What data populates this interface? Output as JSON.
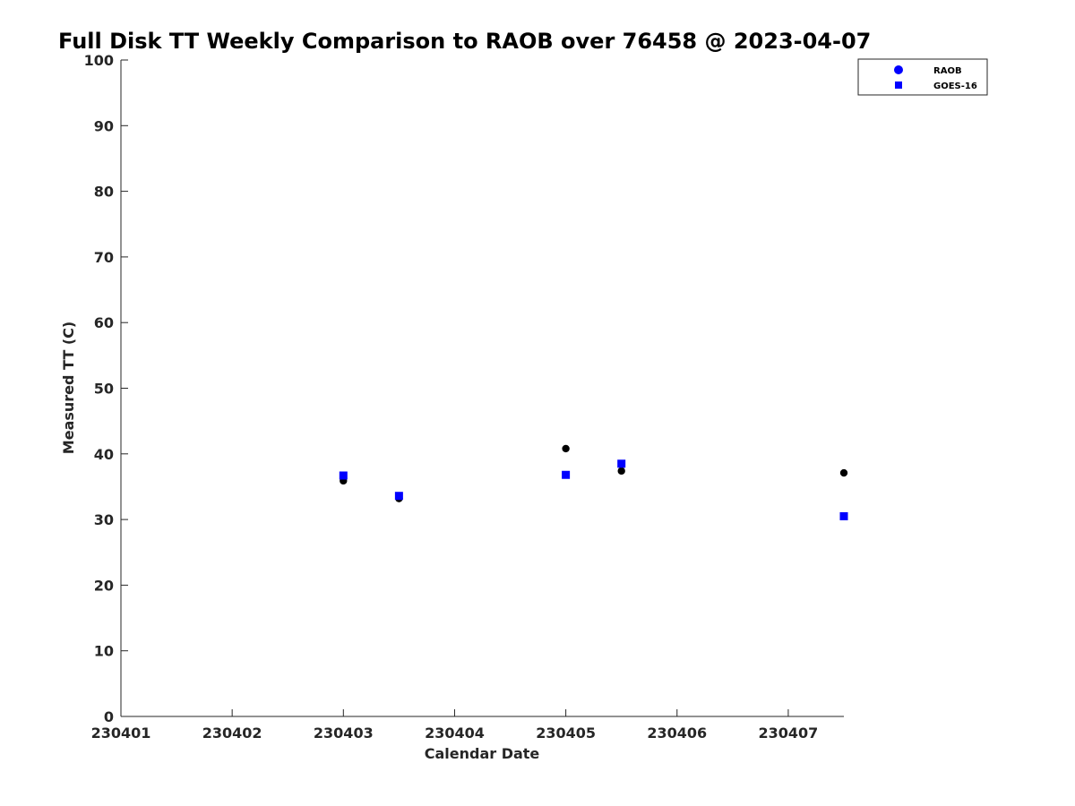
{
  "chart_data": {
    "type": "scatter",
    "title": "Full Disk TT Weekly Comparison to RAOB over 76458 @ 2023-04-07",
    "xlabel": "Calendar Date",
    "ylabel": "Measured TT (C)",
    "xlim": [
      "2023-04-01",
      "2023-04-07 12:00"
    ],
    "ylim": [
      0,
      100
    ],
    "x_ticks": [
      "230401",
      "230402",
      "230403",
      "230404",
      "230405",
      "230406",
      "230407"
    ],
    "y_ticks": [
      0,
      10,
      20,
      30,
      40,
      50,
      60,
      70,
      80,
      90,
      100
    ],
    "grid": false,
    "legend_position": "top-right",
    "series": [
      {
        "name": "RAOB",
        "marker": "circle",
        "color": "#000000",
        "legend_color": "#0000ff",
        "points": [
          {
            "x": "2023-04-03 00:00",
            "y": 35.9
          },
          {
            "x": "2023-04-03 12:00",
            "y": 33.2
          },
          {
            "x": "2023-04-05 00:00",
            "y": 40.8
          },
          {
            "x": "2023-04-05 12:00",
            "y": 37.4
          },
          {
            "x": "2023-04-07 12:00",
            "y": 37.1
          }
        ]
      },
      {
        "name": "GOES-16",
        "marker": "square",
        "color": "#0000ff",
        "legend_color": "#0000ff",
        "points": [
          {
            "x": "2023-04-03 00:00",
            "y": 36.7
          },
          {
            "x": "2023-04-03 12:00",
            "y": 33.6
          },
          {
            "x": "2023-04-05 00:00",
            "y": 36.8
          },
          {
            "x": "2023-04-05 12:00",
            "y": 38.5
          },
          {
            "x": "2023-04-07 12:00",
            "y": 30.5
          }
        ]
      }
    ]
  }
}
